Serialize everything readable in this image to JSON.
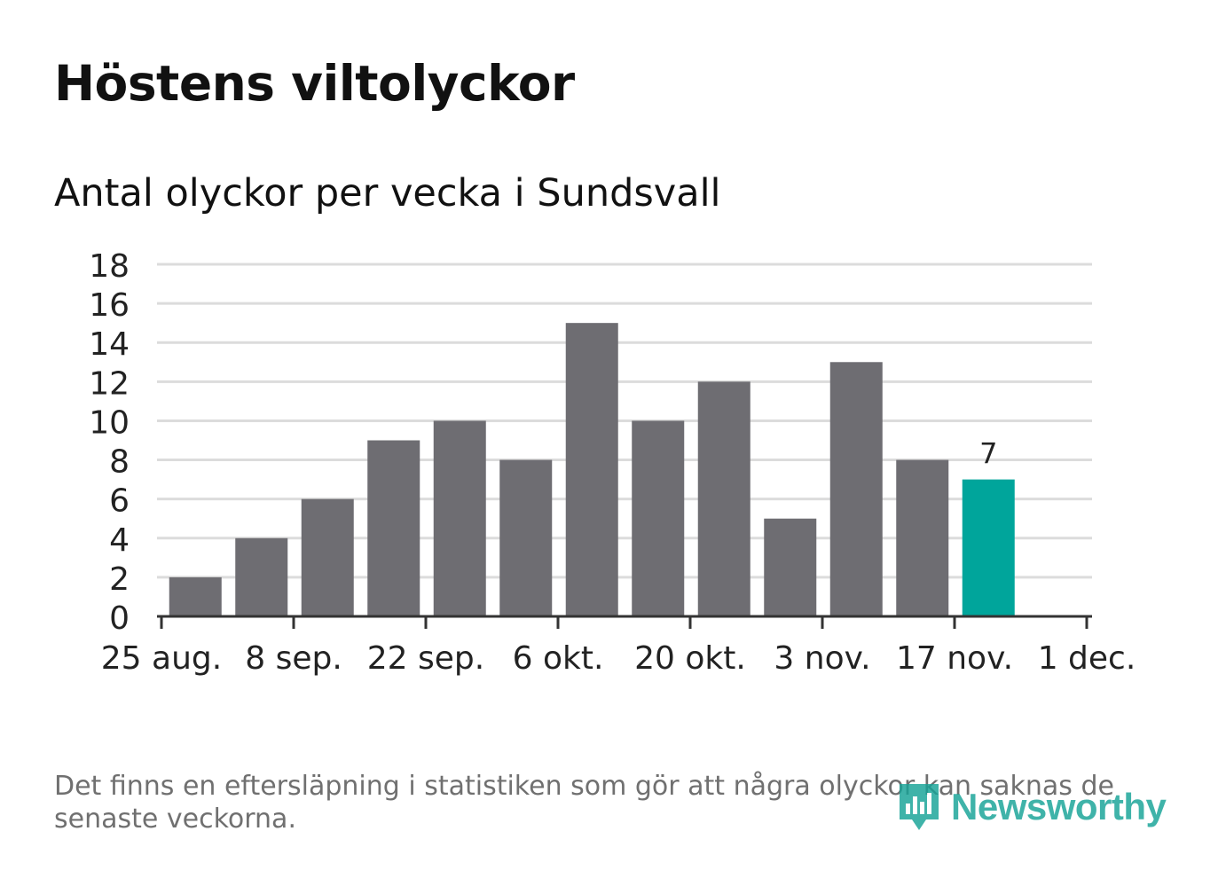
{
  "header": {
    "title": "Höstens viltolyckor",
    "subtitle": "Antal olyckor per vecka i Sundsvall"
  },
  "footer": {
    "note": "Det finns en eftersläpning i statistiken som gör att några olyckor kan saknas de senaste veckorna.",
    "brand": "Newsworthy",
    "brand_icon": "bar-chart-speech-bubble-icon"
  },
  "colors": {
    "bar": "#6e6d72",
    "highlight": "#00a59b",
    "grid": "#dcdcdc",
    "axis": "#333333",
    "brand": "#16a397"
  },
  "chart_data": {
    "type": "bar",
    "title": "Höstens viltolyckor",
    "subtitle": "Antal olyckor per vecka i Sundsvall",
    "xlabel": "",
    "ylabel": "",
    "ylim": [
      0,
      18
    ],
    "yticks": [
      "0",
      "2",
      "4",
      "6",
      "8",
      "10",
      "12",
      "14",
      "16",
      "18"
    ],
    "xticks": [
      "25 aug.",
      "8 sep.",
      "22 sep.",
      "6 okt.",
      "20 okt.",
      "3 nov.",
      "17 nov.",
      "1 dec."
    ],
    "grid": true,
    "legend": "none",
    "values": [
      2,
      4,
      6,
      9,
      10,
      8,
      15,
      10,
      12,
      5,
      13,
      8,
      7
    ],
    "highlight_index": 12,
    "data_label": "7"
  }
}
